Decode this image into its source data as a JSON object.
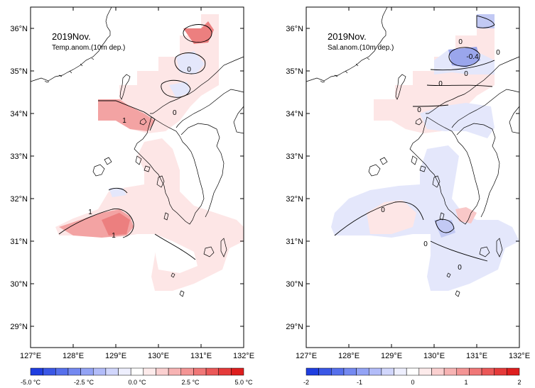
{
  "panels": [
    {
      "id": "temp",
      "title_line1": "2019Nov.",
      "title_line2": "Temp.anom.(10m dep.)",
      "contour_labels": [
        {
          "text": "0",
          "lon": 130.72,
          "lat": 35.05
        },
        {
          "text": "0",
          "lon": 130.38,
          "lat": 34.03
        },
        {
          "text": "1",
          "lon": 129.2,
          "lat": 33.85
        },
        {
          "text": "1",
          "lon": 128.4,
          "lat": 31.7
        },
        {
          "text": "1",
          "lon": 128.95,
          "lat": 31.15
        }
      ],
      "colorbar": {
        "tick_labels": [
          "-5.0 °C",
          "-2.5 °C",
          "0.0 °C",
          "2.5 °C",
          "5.0 °C"
        ],
        "colors": [
          "#1f3ee0",
          "#3a57e6",
          "#5670ec",
          "#7489f1",
          "#93a3f5",
          "#b2bcf9",
          "#d1d6fc",
          "#eeeffe",
          "#ffffff",
          "#fdebeb",
          "#fbd0d0",
          "#f7b3b3",
          "#f49595",
          "#f07777",
          "#eb5858",
          "#e53a3a",
          "#de1e1e"
        ]
      }
    },
    {
      "id": "sal",
      "title_line1": "2019Nov.",
      "title_line2": "Sal.anom.(10m dep.)",
      "contour_labels": [
        {
          "text": "0",
          "lon": 130.62,
          "lat": 35.7
        },
        {
          "text": "-0.4",
          "lon": 130.9,
          "lat": 35.35
        },
        {
          "text": "0",
          "lon": 131.5,
          "lat": 35.45
        },
        {
          "text": "0",
          "lon": 130.75,
          "lat": 34.95
        },
        {
          "text": "0",
          "lon": 130.15,
          "lat": 34.72
        },
        {
          "text": "0",
          "lon": 129.65,
          "lat": 34.1
        },
        {
          "text": "0",
          "lon": 128.8,
          "lat": 31.75
        },
        {
          "text": "0",
          "lon": 129.8,
          "lat": 30.95
        },
        {
          "text": "0",
          "lon": 130.6,
          "lat": 30.4
        }
      ],
      "colorbar": {
        "tick_labels": [
          "-2",
          "-1",
          "0",
          "1",
          "2"
        ],
        "colors": [
          "#1f3ee0",
          "#3a57e6",
          "#5670ec",
          "#7489f1",
          "#93a3f5",
          "#b2bcf9",
          "#d1d6fc",
          "#eeeffe",
          "#ffffff",
          "#fdebeb",
          "#fbd0d0",
          "#f7b3b3",
          "#f49595",
          "#f07777",
          "#eb5858",
          "#e53a3a",
          "#de1e1e"
        ]
      }
    }
  ],
  "axes": {
    "lon_labels": [
      "127°E",
      "128°E",
      "129°E",
      "130°E",
      "131°E",
      "132°E"
    ],
    "lat_labels": [
      "29°N",
      "30°N",
      "31°N",
      "32°N",
      "33°N",
      "34°N",
      "35°N",
      "36°N"
    ]
  },
  "colors": {
    "warm_1": "#fde6e6",
    "warm_2": "#f9c8c8",
    "warm_3": "#f3a3a3",
    "warm_4": "#ec7f7f",
    "cool_1": "#e4e7fb",
    "cool_2": "#c2c9f4",
    "cool_3": "#9aa6ec"
  }
}
